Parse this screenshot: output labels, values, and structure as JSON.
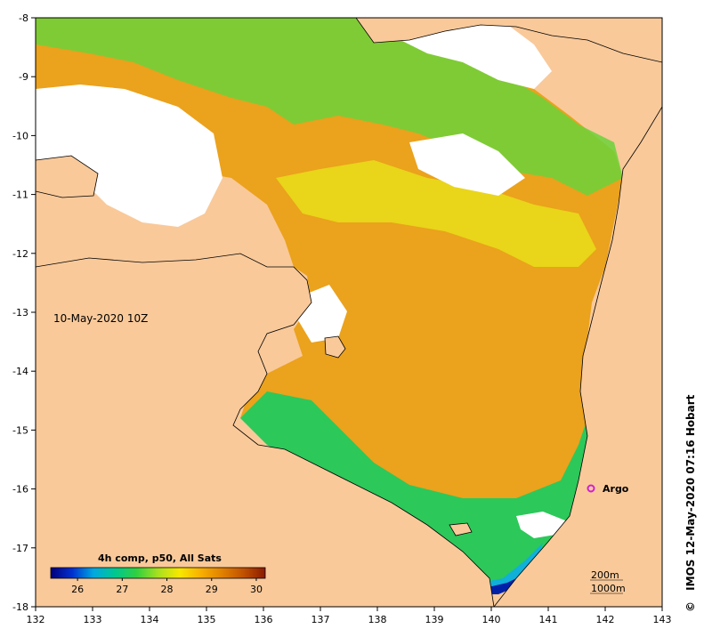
{
  "map": {
    "date_label": "10-May-2020 10Z",
    "credit": "IMOS 12-May-2020 07:16 Hobart",
    "copyright_symbol": "©",
    "float_label": "Argo",
    "float_marker_color": "#d020d0",
    "scale_bar": {
      "label_top": "200m",
      "label_bottom": "1000m"
    },
    "land_color": "#f9c99a",
    "no_data_color": "#ffffff",
    "x_axis": {
      "ticks": [
        "132",
        "133",
        "134",
        "135",
        "136",
        "137",
        "138",
        "139",
        "140",
        "141",
        "142",
        "143"
      ],
      "range": [
        132,
        143
      ]
    },
    "y_axis": {
      "ticks": [
        "-8",
        "-9",
        "-10",
        "-11",
        "-12",
        "-13",
        "-14",
        "-15",
        "-16",
        "-17",
        "-18"
      ],
      "range": [
        -18,
        -8
      ]
    },
    "colorbar": {
      "title": "4h comp, p50, All Sats",
      "ticks": [
        "26",
        "27",
        "28",
        "29",
        "30"
      ],
      "range": [
        25.4,
        30.2
      ],
      "colors": [
        "#00007a",
        "#0030d0",
        "#00a8e0",
        "#00c890",
        "#30d040",
        "#a8e020",
        "#f8e800",
        "#f8b000",
        "#e08000",
        "#c05000",
        "#8a1a00"
      ]
    }
  }
}
